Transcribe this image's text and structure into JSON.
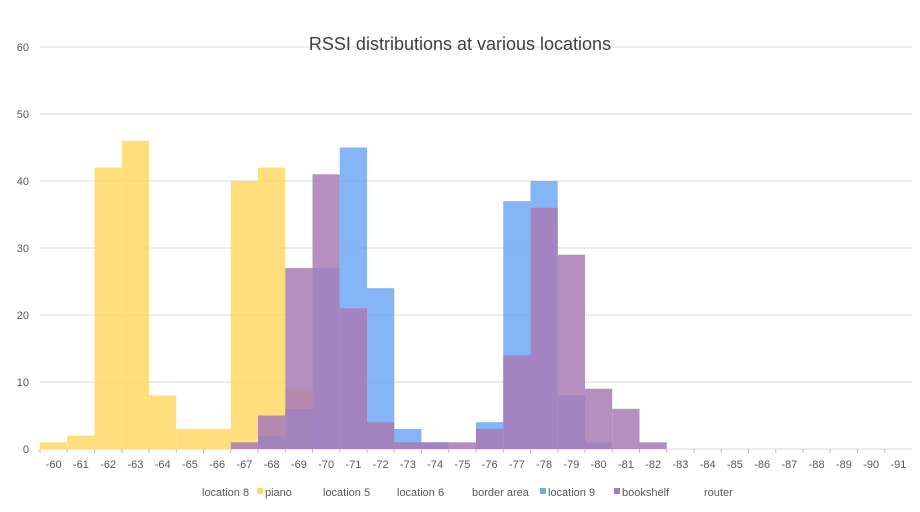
{
  "chart_data": {
    "type": "bar",
    "title": "RSSI distributions at various locations",
    "xlabel": "",
    "ylabel": "",
    "ylim": [
      0,
      60
    ],
    "yticks": [
      0,
      10,
      20,
      30,
      40,
      50,
      60
    ],
    "grid": true,
    "legend_position": "bottom",
    "categories": [
      "-60",
      "-61",
      "-62",
      "-63",
      "-64",
      "-65",
      "-66",
      "-67",
      "-68",
      "-69",
      "-70",
      "-71",
      "-72",
      "-73",
      "-74",
      "-75",
      "-76",
      "-77",
      "-78",
      "-79",
      "-80",
      "-81",
      "-82",
      "-83",
      "-84",
      "-85",
      "-86",
      "-87",
      "-88",
      "-89",
      "-90",
      "-91"
    ],
    "series": [
      {
        "name": "location 8",
        "color": "#ffffff",
        "values": [
          0,
          0,
          0,
          0,
          0,
          0,
          0,
          0,
          0,
          0,
          0,
          0,
          0,
          0,
          0,
          0,
          0,
          0,
          0,
          0,
          0,
          0,
          0,
          0,
          0,
          0,
          0,
          0,
          0,
          0,
          0,
          0
        ]
      },
      {
        "name": "piano",
        "color": "#ffd966",
        "values": [
          1,
          2,
          42,
          46,
          8,
          3,
          3,
          40,
          42,
          9,
          0,
          0,
          0,
          0,
          0,
          0,
          0,
          0,
          0,
          0,
          0,
          0,
          0,
          0,
          0,
          0,
          0,
          0,
          0,
          0,
          0,
          0
        ]
      },
      {
        "name": "location 5",
        "color": "#ffffff",
        "values": [
          0,
          0,
          0,
          0,
          0,
          0,
          0,
          0,
          0,
          0,
          0,
          0,
          0,
          0,
          0,
          0,
          0,
          0,
          0,
          0,
          0,
          0,
          0,
          0,
          0,
          0,
          0,
          0,
          0,
          0,
          0,
          0
        ]
      },
      {
        "name": "location 6",
        "color": "#ffffff",
        "values": [
          0,
          0,
          0,
          0,
          0,
          0,
          0,
          0,
          0,
          0,
          0,
          0,
          0,
          0,
          0,
          0,
          0,
          0,
          0,
          0,
          0,
          0,
          0,
          0,
          0,
          0,
          0,
          0,
          0,
          0,
          0,
          0
        ]
      },
      {
        "name": "border area",
        "color": "#ffffff",
        "values": [
          0,
          0,
          0,
          0,
          0,
          0,
          0,
          0,
          0,
          0,
          0,
          0,
          0,
          0,
          0,
          0,
          0,
          0,
          0,
          0,
          0,
          0,
          0,
          0,
          0,
          0,
          0,
          0,
          0,
          0,
          0,
          0
        ]
      },
      {
        "name": "location 9",
        "color": "#6fa8f5",
        "values": [
          0,
          0,
          0,
          0,
          0,
          0,
          0,
          0,
          2,
          6,
          27,
          45,
          24,
          3,
          1,
          0,
          4,
          37,
          40,
          8,
          1,
          0,
          0,
          0,
          0,
          0,
          0,
          0,
          0,
          0,
          0,
          0
        ]
      },
      {
        "name": "bookshelf",
        "color": "#a97bb6",
        "values": [
          0,
          0,
          0,
          0,
          0,
          0,
          0,
          1,
          5,
          27,
          41,
          21,
          4,
          1,
          1,
          1,
          3,
          14,
          36,
          29,
          9,
          6,
          1,
          0,
          0,
          0,
          0,
          0,
          0,
          0,
          0,
          0
        ]
      },
      {
        "name": "router",
        "color": "#ffffff",
        "values": [
          0,
          0,
          0,
          0,
          0,
          0,
          0,
          0,
          0,
          0,
          0,
          0,
          0,
          0,
          0,
          0,
          0,
          0,
          0,
          0,
          0,
          0,
          0,
          0,
          0,
          0,
          0,
          0,
          0,
          0,
          0,
          0
        ]
      }
    ]
  }
}
